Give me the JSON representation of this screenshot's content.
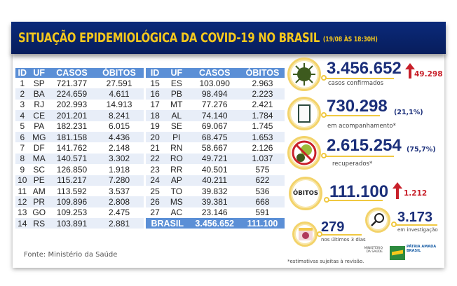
{
  "header": {
    "title": "SITUAÇÃO EPIDEMIOLÓGICA DA COVID-19 NO BRASIL",
    "date": "(19/08 ÀS 18:30H)"
  },
  "table": {
    "columns": [
      "ID",
      "UF",
      "CASOS",
      "ÓBITOS"
    ],
    "rows": [
      [
        "1",
        "SP",
        "721.377",
        "27.591"
      ],
      [
        "2",
        "BA",
        "224.659",
        "4.611"
      ],
      [
        "3",
        "RJ",
        "202.993",
        "14.913"
      ],
      [
        "4",
        "CE",
        "201.201",
        "8.241"
      ],
      [
        "5",
        "PA",
        "182.231",
        "6.015"
      ],
      [
        "6",
        "MG",
        "181.158",
        "4.436"
      ],
      [
        "7",
        "DF",
        "141.762",
        "2.148"
      ],
      [
        "8",
        "MA",
        "140.571",
        "3.302"
      ],
      [
        "9",
        "SC",
        "126.850",
        "1.918"
      ],
      [
        "10",
        "PE",
        "115.217",
        "7.280"
      ],
      [
        "11",
        "AM",
        "113.592",
        "3.537"
      ],
      [
        "12",
        "PR",
        "109.896",
        "2.808"
      ],
      [
        "13",
        "GO",
        "109.253",
        "2.475"
      ],
      [
        "14",
        "RS",
        "103.891",
        "2.881"
      ],
      [
        "15",
        "ES",
        "103.090",
        "2.963"
      ],
      [
        "16",
        "PB",
        "98.494",
        "2.223"
      ],
      [
        "17",
        "MT",
        "77.276",
        "2.421"
      ],
      [
        "18",
        "AL",
        "74.140",
        "1.784"
      ],
      [
        "19",
        "SE",
        "69.067",
        "1.745"
      ],
      [
        "20",
        "PI",
        "68.475",
        "1.653"
      ],
      [
        "21",
        "RN",
        "58.667",
        "2.126"
      ],
      [
        "22",
        "RO",
        "49.721",
        "1.037"
      ],
      [
        "23",
        "RR",
        "40.501",
        "575"
      ],
      [
        "24",
        "AP",
        "40.211",
        "622"
      ],
      [
        "25",
        "TO",
        "39.832",
        "536"
      ],
      [
        "26",
        "MS",
        "39.381",
        "668"
      ],
      [
        "27",
        "AC",
        "23.146",
        "591"
      ]
    ],
    "total": {
      "label": "BRASIL",
      "casos": "3.456.652",
      "obitos": "111.100"
    }
  },
  "stats": {
    "confirmados": {
      "value": "3.456.652",
      "label": "casos confirmados",
      "delta": "49.298",
      "icon": "virus-icon"
    },
    "acompanhamento": {
      "value": "730.298",
      "pct": "(21,1%)",
      "label": "em acompanhamento*",
      "icon": "clipboard-icon"
    },
    "recuperados": {
      "value": "2.615.254",
      "pct": "(75,7%)",
      "label": "recuperados*",
      "icon": "no-virus-icon"
    },
    "obitos": {
      "badge": "ÓBITOS",
      "value": "111.100",
      "delta": "1.212"
    },
    "investigacao": {
      "value": "3.173",
      "label": "em investigação",
      "icon": "magnifier-icon"
    },
    "ultimos": {
      "value": "279",
      "label": "nos últimos 3 dias",
      "icon": "calendar-icon"
    }
  },
  "footer": {
    "source": "Fonte: Ministério da Saúde",
    "note": "*estimativas sujeitas à revisão.",
    "ministry": "MINISTÉRIO DA SAÚDE",
    "brand": "PÁTRIA AMADA BRASIL"
  },
  "colors": {
    "banner": "#0b2a7a",
    "title": "#f6c81c",
    "table_header": "#5b8fd6",
    "number": "#1b2f7a",
    "delta": "#c8202a",
    "ring": "#f3d36a"
  }
}
